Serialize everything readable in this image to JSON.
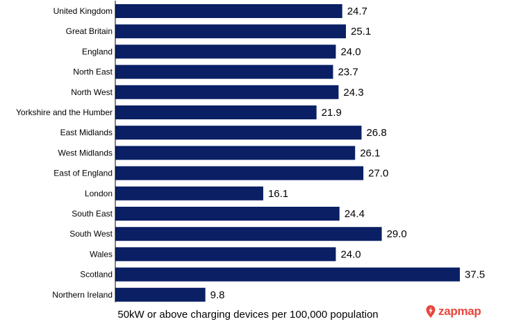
{
  "chart_data": {
    "type": "bar",
    "orientation": "horizontal",
    "categories": [
      "United Kingdom",
      "Great Britain",
      "England",
      "North East",
      "North West",
      "Yorkshire and the Humber",
      "East Midlands",
      "West Midlands",
      "East of England",
      "London",
      "South East",
      "South West",
      "Wales",
      "Scotland",
      "Northern Ireland"
    ],
    "values": [
      24.7,
      25.1,
      24.0,
      23.7,
      24.3,
      21.9,
      26.8,
      26.1,
      27.0,
      16.1,
      24.4,
      29.0,
      24.0,
      37.5,
      9.8
    ],
    "value_labels": [
      "24.7",
      "25.1",
      "24.0",
      "23.7",
      "24.3",
      "21.9",
      "26.8",
      "26.1",
      "27.0",
      "16.1",
      "24.4",
      "29.0",
      "24.0",
      "37.5",
      "9.8"
    ],
    "xlabel": "50kW or above charging devices per 100,000 population",
    "ylabel": "",
    "title": "",
    "xlim": [
      0,
      37.5
    ],
    "grid": false,
    "legend": "none",
    "bar_color": "#0a1f64"
  },
  "brand": {
    "name": "zapmap",
    "color": "#e8453c",
    "icon": "zapmap-logo-icon"
  }
}
